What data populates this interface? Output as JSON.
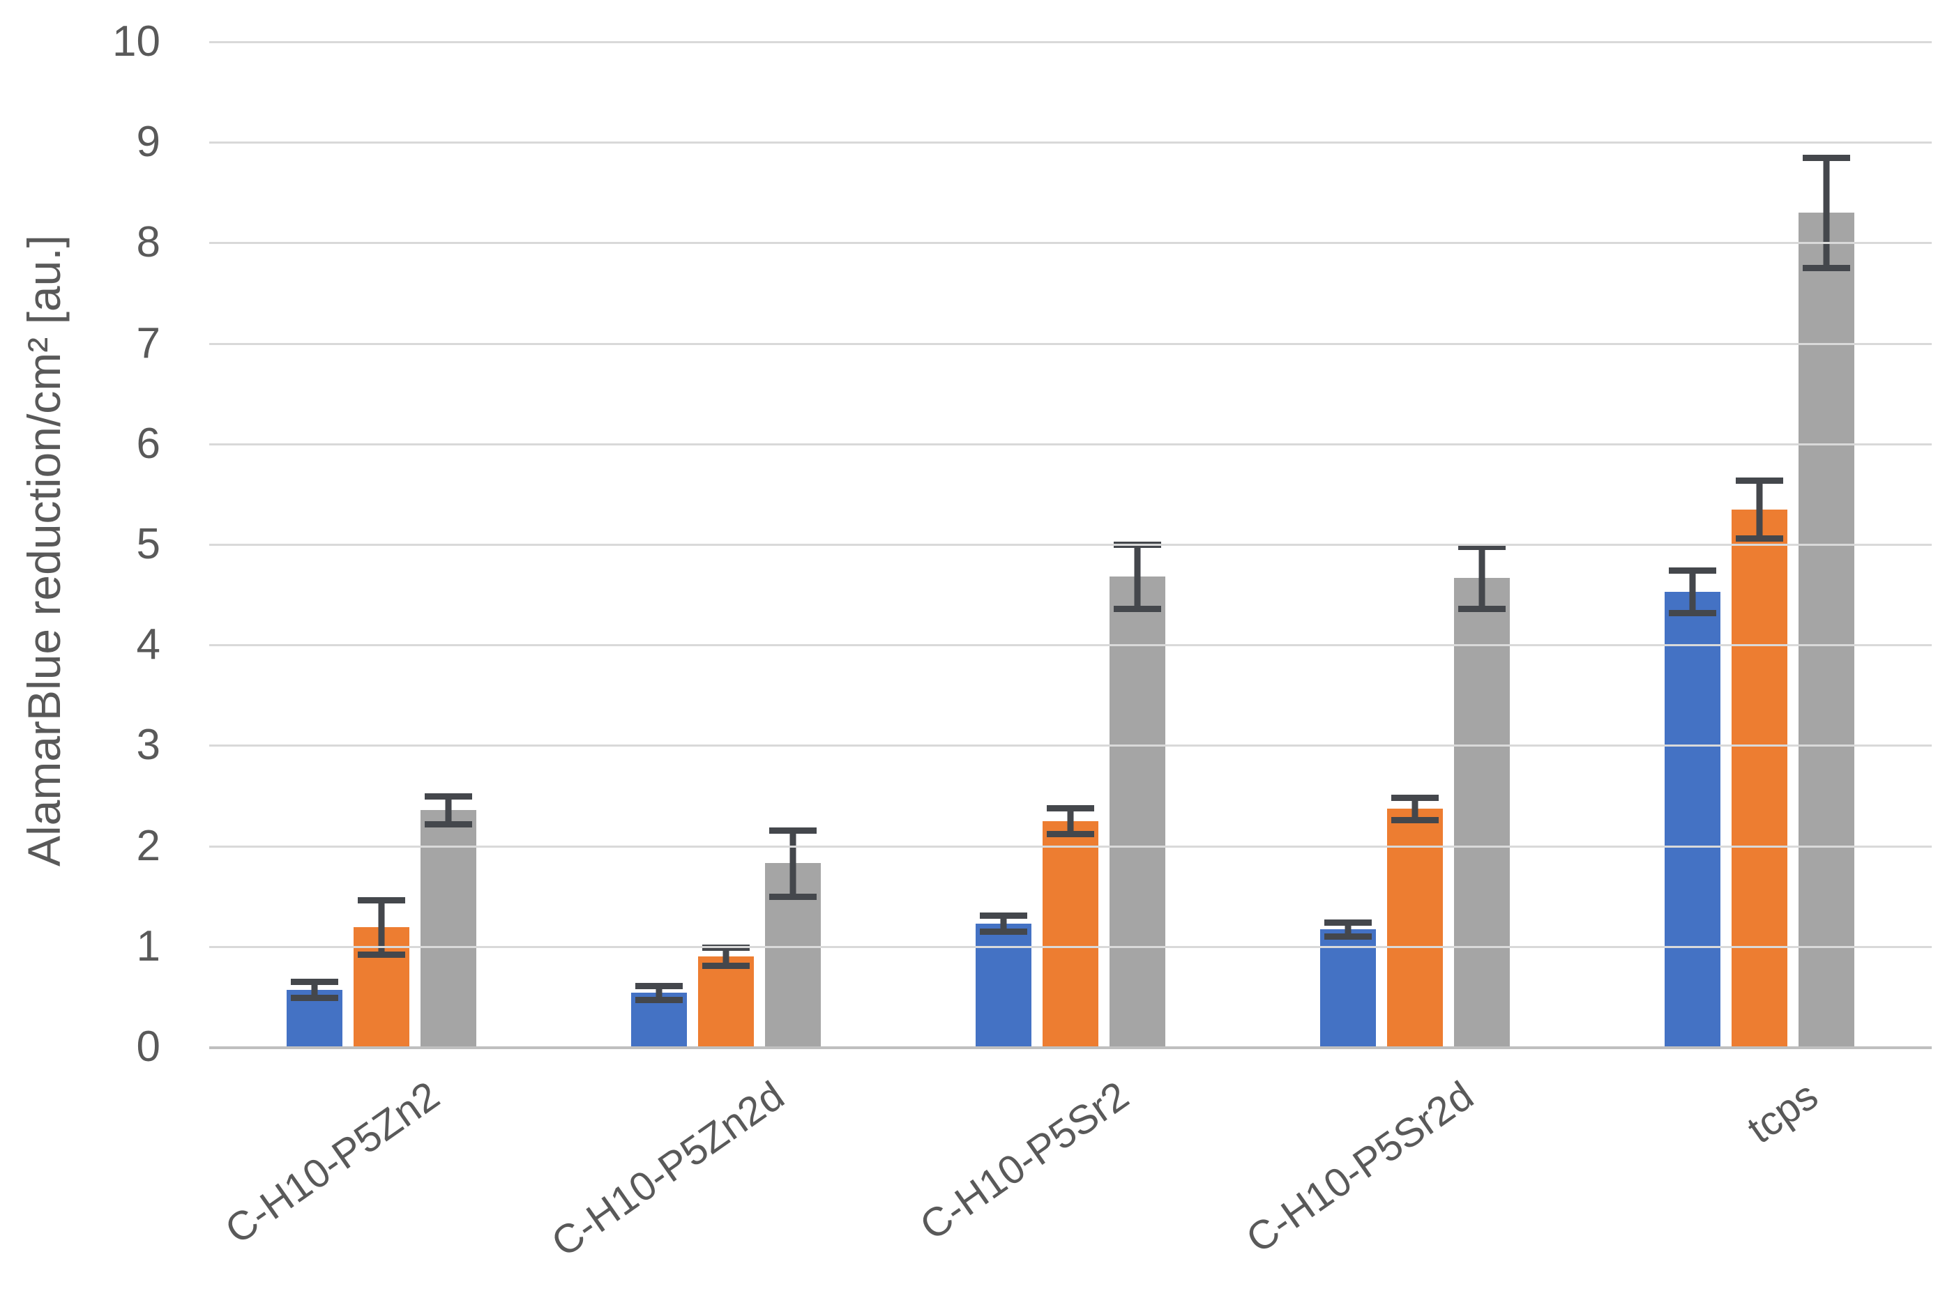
{
  "chart_data": {
    "type": "bar",
    "title": "",
    "xlabel": "",
    "ylabel": "AlamarBlue reduction/cm² [au.]",
    "ylim": [
      0,
      10
    ],
    "yticks": [
      0,
      1,
      2,
      3,
      4,
      5,
      6,
      7,
      8,
      9,
      10
    ],
    "grid": true,
    "legend_position": "none",
    "categories": [
      "C-H10-P5Zn2",
      "C-H10-P5Zn2d",
      "C-H10-P5Sr2",
      "C-H10-P5Sr2d",
      "tcps"
    ],
    "series": [
      {
        "name": "blue",
        "color": "#4472C4",
        "values": [
          0.57,
          0.54,
          1.23,
          1.17,
          4.53
        ],
        "errors": [
          0.08,
          0.07,
          0.08,
          0.07,
          0.21
        ]
      },
      {
        "name": "orange",
        "color": "#ED7D31",
        "values": [
          1.19,
          0.9,
          2.25,
          2.37,
          5.35
        ],
        "errors": [
          0.27,
          0.09,
          0.13,
          0.11,
          0.29
        ]
      },
      {
        "name": "gray",
        "color": "#A5A5A5",
        "values": [
          2.36,
          1.83,
          4.68,
          4.67,
          8.3
        ],
        "errors": [
          0.14,
          0.33,
          0.32,
          0.31,
          0.55
        ]
      }
    ]
  },
  "colors": {
    "axis_text": "#595959",
    "gridline": "#D9D9D9",
    "baseline": "#BFBFBF",
    "error_bar": "#44474C",
    "background": "#FFFFFF"
  }
}
